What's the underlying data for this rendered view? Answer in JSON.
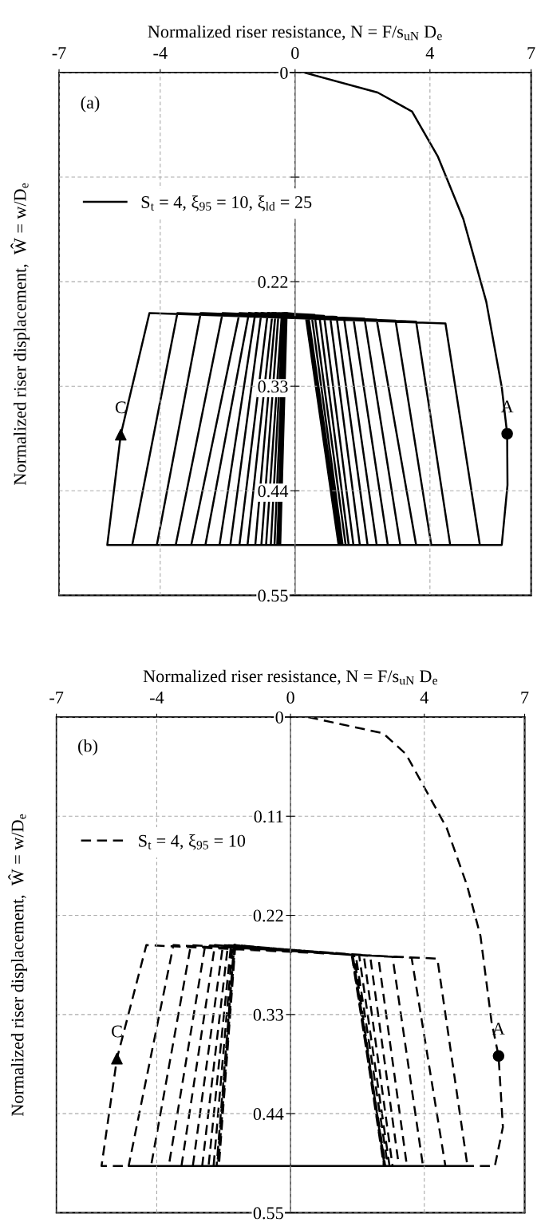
{
  "chart_data": [
    {
      "type": "line",
      "xlabel": "Normalized riser resistance, N = F/s$_{uN}$ D$_{e}$",
      "ylabel": "Normalized riser displacement,  Ŵ = w/D$_{e}$",
      "xlim": [
        -7,
        7
      ],
      "xticks": [
        -7,
        -4,
        0,
        4,
        7
      ],
      "ylim": [
        0.55,
        0
      ],
      "yticks": [
        0,
        {
          "value": 0.11,
          "label": null
        },
        0.22,
        0.33,
        0.44,
        0.55
      ],
      "grid": true,
      "legend": "top left",
      "annotations": [
        "(a)",
        {
          "text": "A",
          "x": 6.29,
          "y": 0.38
        },
        {
          "text": "C",
          "x": -5.17,
          "y": 0.381
        }
      ],
      "series": [
        {
          "name": "S$_{t}$ = 4, ξ$_{95}$ = 10, ξ$_{ld}$ = 25",
          "color": "#000000",
          "line_style": "solid",
          "x": [
            0.27,
            2.45,
            3.47,
            4.23,
            4.99,
            5.67,
            6.13,
            6.29,
            6.3,
            6.13,
            -5.57,
            -5.17,
            -4.32,
            4.46,
            5.48,
            -4.83,
            -3.49,
            3.59,
            4.6,
            -4.1,
            -2.8,
            2.98,
            4.04,
            -3.54,
            -2.15,
            2.42,
            3.59,
            -3.08,
            -1.65,
            2.06,
            3.12,
            -2.66,
            -1.37,
            1.73,
            2.75,
            -2.24,
            -1.18,
            1.45,
            2.42,
            -1.92,
            -1.0,
            1.23,
            2.15,
            -1.65,
            -0.81,
            1.04,
            1.92,
            -1.41,
            -0.67,
            0.86,
            1.73,
            -1.18,
            -0.58,
            0.72,
            1.59,
            -1.0,
            -0.49,
            0.58,
            1.5,
            -0.86,
            -0.39,
            0.49,
            1.41,
            -0.72,
            -0.35,
            0.39,
            1.37,
            -0.61,
            -0.31,
            0.35,
            1.33,
            -0.53,
            -0.28,
            0.33,
            1.31,
            -0.48,
            -0.26,
            0.32,
            1.3,
            -0.44,
            -0.25,
            0.31,
            1.29
          ],
          "values": [
            0,
            0.021,
            0.041,
            0.088,
            0.154,
            0.241,
            0.331,
            0.38,
            0.434,
            0.497,
            0.497,
            0.381,
            0.253,
            0.264,
            0.497,
            0.497,
            0.253,
            0.262,
            0.497,
            0.497,
            0.253,
            0.261,
            0.497,
            0.497,
            0.253,
            0.26,
            0.497,
            0.497,
            0.253,
            0.259,
            0.497,
            0.497,
            0.253,
            0.259,
            0.497,
            0.497,
            0.253,
            0.258,
            0.497,
            0.497,
            0.253,
            0.257,
            0.497,
            0.497,
            0.253,
            0.257,
            0.497,
            0.497,
            0.253,
            0.256,
            0.497,
            0.497,
            0.253,
            0.256,
            0.497,
            0.497,
            0.253,
            0.255,
            0.497,
            0.497,
            0.253,
            0.255,
            0.497,
            0.497,
            0.253,
            0.255,
            0.497,
            0.497,
            0.253,
            0.255,
            0.497,
            0.497,
            0.253,
            0.255,
            0.497,
            0.497,
            0.253,
            0.255,
            0.497,
            0.497,
            0.253,
            0.255,
            0.497
          ]
        },
        {
          "type": "scatter",
          "marker": "circle",
          "color": "#000000",
          "x": [
            6.29
          ],
          "values": [
            0.38
          ]
        },
        {
          "type": "scatter",
          "marker": "triangle",
          "color": "#000000",
          "x": [
            -5.17
          ],
          "values": [
            0.381
          ]
        }
      ]
    },
    {
      "type": "line",
      "xlabel": "Normalized riser resistance, N = F/s$_{uN}$ D$_{e}$",
      "ylabel": "Normalized riser displacement,  Ŵ = w/D$_{e}$",
      "xlim": [
        -7,
        7
      ],
      "xticks": [
        -7,
        -4,
        0,
        4,
        7
      ],
      "ylim": [
        0.55,
        0
      ],
      "yticks": [
        0,
        0.11,
        0.22,
        0.33,
        0.44,
        0.55
      ],
      "grid": true,
      "legend": "top left",
      "annotations": [
        "(b)",
        {
          "text": "A",
          "x": 6.22,
          "y": 0.376
        },
        {
          "text": "C",
          "x": -5.19,
          "y": 0.379
        }
      ],
      "series": [
        {
          "name": "S$_{t}$ = 4, ξ$_{95}$ = 10",
          "color": "#000000",
          "line_style": "dashed",
          "x": [
            0.53,
            2.77,
            3.45,
            4.67,
            5.28,
            5.68,
            6.01,
            6.22,
            6.35,
            6.11,
            -5.65,
            -5.19,
            -4.31,
            4.39,
            5.29,
            -4.84,
            -3.5,
            3.62,
            4.63,
            -4.17,
            -2.98,
            3.05,
            3.96,
            -3.64,
            -2.55,
            2.62,
            3.48,
            -3.26,
            -2.26,
            2.38,
            3.24,
            -2.92,
            -2.02,
            2.19,
            3.05,
            -2.64,
            -1.87,
            2.05,
            2.96,
            -2.45,
            -1.78,
            1.95,
            2.91,
            -2.3,
            -1.73,
            1.9,
            2.81,
            -2.21,
            -1.68,
            1.86,
            2.84,
            -2.16,
            -1.66,
            1.84,
            2.79,
            -2.19,
            -1.69,
            1.86,
            2.83,
            -2.14,
            -1.65,
            1.83,
            2.8,
            -2.17,
            -1.67,
            1.85,
            2.82
          ],
          "values": [
            0,
            0.018,
            0.041,
            0.123,
            0.187,
            0.243,
            0.338,
            0.376,
            0.455,
            0.498,
            0.498,
            0.379,
            0.253,
            0.268,
            0.498,
            0.498,
            0.253,
            0.267,
            0.498,
            0.498,
            0.253,
            0.266,
            0.498,
            0.498,
            0.253,
            0.265,
            0.498,
            0.498,
            0.253,
            0.265,
            0.498,
            0.498,
            0.253,
            0.264,
            0.498,
            0.498,
            0.253,
            0.264,
            0.498,
            0.498,
            0.253,
            0.264,
            0.498,
            0.498,
            0.253,
            0.264,
            0.498,
            0.498,
            0.253,
            0.264,
            0.498,
            0.498,
            0.253,
            0.264,
            0.498,
            0.498,
            0.253,
            0.264,
            0.498,
            0.498,
            0.253,
            0.264,
            0.498,
            0.498,
            0.253,
            0.264,
            0.498
          ]
        },
        {
          "type": "scatter",
          "marker": "circle",
          "color": "#000000",
          "x": [
            6.22
          ],
          "values": [
            0.376
          ]
        },
        {
          "type": "scatter",
          "marker": "triangle",
          "color": "#000000",
          "x": [
            -5.19
          ],
          "values": [
            0.379
          ]
        }
      ]
    }
  ]
}
